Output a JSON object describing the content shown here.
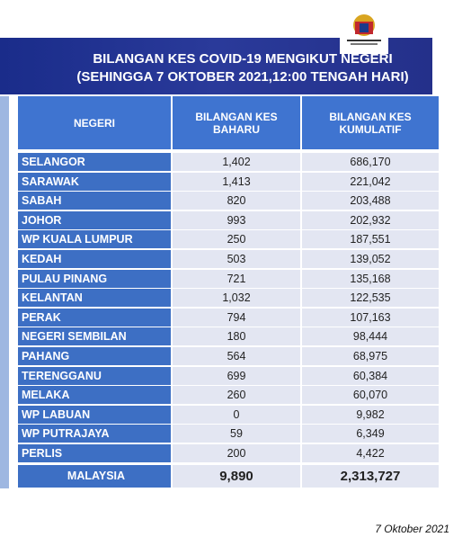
{
  "header": {
    "title": "BILANGAN KES COVID-19 MENGIKUT NEGERI",
    "subtitle": "(SEHINGGA 7 OKTOBER 2021,12:00 TENGAH HARI)"
  },
  "table": {
    "columns": [
      "NEGERI",
      "BILANGAN KES BAHARU",
      "BILANGAN KES KUMULATIF"
    ],
    "rows": [
      [
        "SELANGOR",
        "1,402",
        "686,170"
      ],
      [
        "SARAWAK",
        "1,413",
        "221,042"
      ],
      [
        "SABAH",
        "820",
        "203,488"
      ],
      [
        "JOHOR",
        "993",
        "202,932"
      ],
      [
        "WP KUALA LUMPUR",
        "250",
        "187,551"
      ],
      [
        "KEDAH",
        "503",
        "139,052"
      ],
      [
        "PULAU PINANG",
        "721",
        "135,168"
      ],
      [
        "KELANTAN",
        "1,032",
        "122,535"
      ],
      [
        "PERAK",
        "794",
        "107,163"
      ],
      [
        "NEGERI SEMBILAN",
        "180",
        "98,444"
      ],
      [
        "PAHANG",
        "564",
        "68,975"
      ],
      [
        "TERENGGANU",
        "699",
        "60,384"
      ],
      [
        "MELAKA",
        "260",
        "60,070"
      ],
      [
        "WP LABUAN",
        "0",
        "9,982"
      ],
      [
        "WP PUTRAJAYA",
        "59",
        "6,349"
      ],
      [
        "PERLIS",
        "200",
        "4,422"
      ]
    ],
    "total": [
      "MALAYSIA",
      "9,890",
      "2,313,727"
    ]
  },
  "footer": {
    "date": "7 Oktober 2021"
  }
}
